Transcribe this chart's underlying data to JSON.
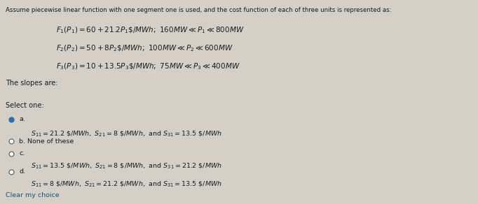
{
  "bg_color": "#d4d0c8",
  "box_bg": "#e8e4dc",
  "title_text": "Assume piecewise linear function with one segment one is used, and the cost function of each of three units is represented as:",
  "slopes_label": "The slopes are:",
  "select_label": "Select one:",
  "clear_text": "Clear my choice",
  "selected_option": "a",
  "text_color": "#1a1a1a",
  "link_color": "#1a5276",
  "radio_selected_color": "#2e6da4",
  "radio_unselected_face": "white",
  "radio_edge_color": "#555555",
  "fs_title": 6.2,
  "fs_eq": 7.5,
  "fs_body": 7.0,
  "fs_opt": 6.8
}
